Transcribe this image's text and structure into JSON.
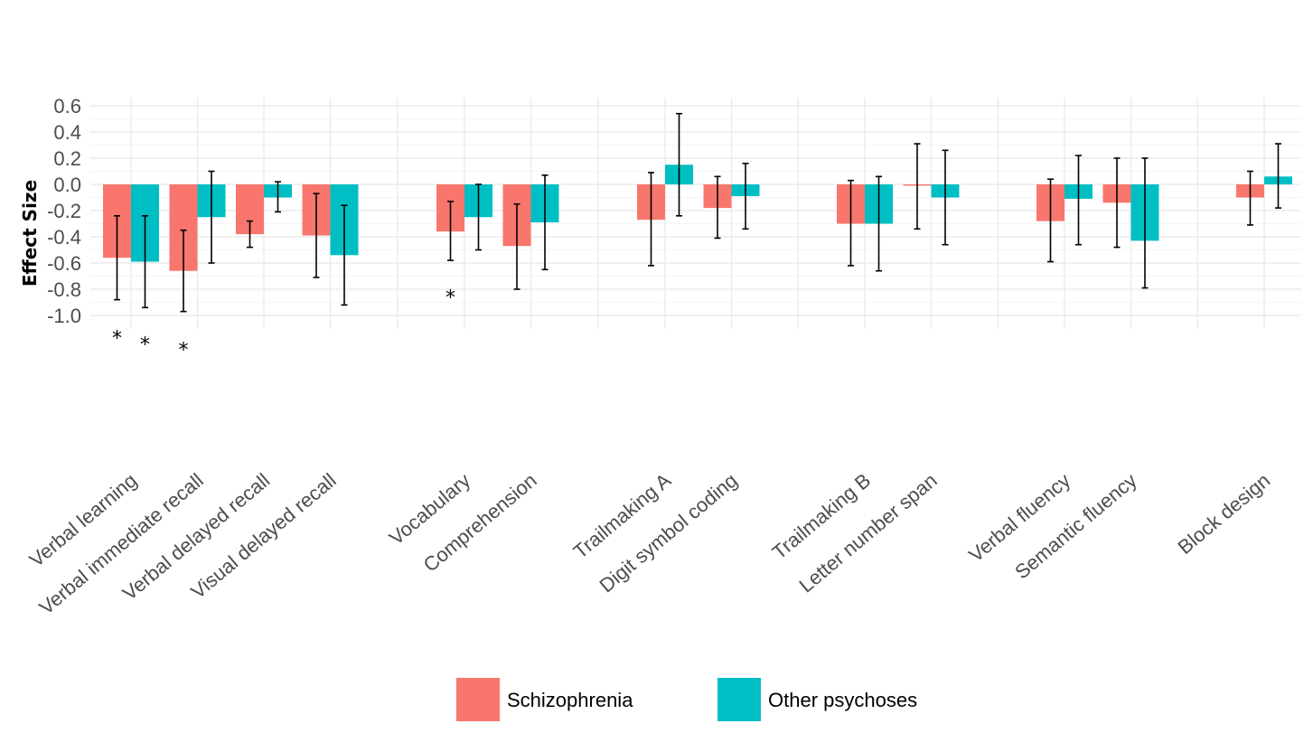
{
  "chart_data": {
    "type": "bar",
    "title": "",
    "xlabel": "",
    "ylabel": "Effect Size",
    "ylim": [
      -1.1,
      0.66
    ],
    "yticks": [
      0.6,
      0.4,
      0.2,
      0.0,
      -0.2,
      -0.4,
      -0.6,
      -0.8,
      -1.0
    ],
    "ytick_labels": [
      "0.6",
      "0.4",
      "0.2",
      "0.0",
      "-0.2",
      "-0.4",
      "-0.6",
      "-0.8",
      "-1.0"
    ],
    "grid": true,
    "legend_position": "bottom",
    "groups": [
      [
        "Verbal learning",
        "Verbal immediate recall",
        "Verbal delayed recall",
        "Visual delayed recall"
      ],
      [
        "Vocabulary",
        "Comprehension"
      ],
      [
        "Trailmaking A",
        "Digit symbol coding"
      ],
      [
        "Trailmaking B",
        "Letter number span"
      ],
      [
        "Verbal fluency",
        "Semantic fluency"
      ],
      [
        "Block design"
      ]
    ],
    "categories": [
      "Verbal learning",
      "Verbal immediate recall",
      "Verbal delayed recall",
      "Visual delayed recall",
      "Vocabulary",
      "Comprehension",
      "Trailmaking A",
      "Digit symbol coding",
      "Trailmaking B",
      "Letter number span",
      "Verbal fluency",
      "Semantic fluency",
      "Block design"
    ],
    "series": [
      {
        "name": "Schizophrenia",
        "color": "#F8766D",
        "values": [
          -0.56,
          -0.66,
          -0.38,
          -0.39,
          -0.36,
          -0.47,
          -0.27,
          -0.18,
          -0.3,
          -0.01,
          -0.28,
          -0.14,
          -0.1
        ],
        "ci_low": [
          -0.88,
          -0.97,
          -0.48,
          -0.71,
          -0.58,
          -0.8,
          -0.62,
          -0.41,
          -0.62,
          -0.34,
          -0.59,
          -0.48,
          -0.31
        ],
        "ci_high": [
          -0.24,
          -0.35,
          -0.28,
          -0.07,
          -0.13,
          -0.15,
          0.09,
          0.06,
          0.03,
          0.31,
          0.04,
          0.2,
          0.1
        ]
      },
      {
        "name": "Other psychoses",
        "color": "#00BFC4",
        "values": [
          -0.59,
          -0.25,
          -0.1,
          -0.54,
          -0.25,
          -0.29,
          0.15,
          -0.09,
          -0.3,
          -0.1,
          -0.11,
          -0.43,
          0.06
        ],
        "ci_low": [
          -0.94,
          -0.6,
          -0.21,
          -0.92,
          -0.5,
          -0.65,
          -0.24,
          -0.34,
          -0.66,
          -0.46,
          -0.46,
          -0.79,
          -0.18
        ],
        "ci_high": [
          -0.24,
          0.1,
          0.02,
          -0.16,
          0.0,
          0.07,
          0.54,
          0.16,
          0.06,
          0.26,
          0.22,
          0.2,
          0.31
        ]
      }
    ],
    "annotations": [
      {
        "text": "*",
        "category": "Verbal learning",
        "series": "Schizophrenia",
        "y": -1.12
      },
      {
        "text": "*",
        "category": "Verbal learning",
        "series": "Other psychoses",
        "y": -1.17
      },
      {
        "text": "*",
        "category": "Verbal immediate recall",
        "series": "Schizophrenia",
        "y": -1.21
      },
      {
        "text": "*",
        "category": "Vocabulary",
        "series": "Schizophrenia",
        "y": -0.81
      }
    ]
  }
}
